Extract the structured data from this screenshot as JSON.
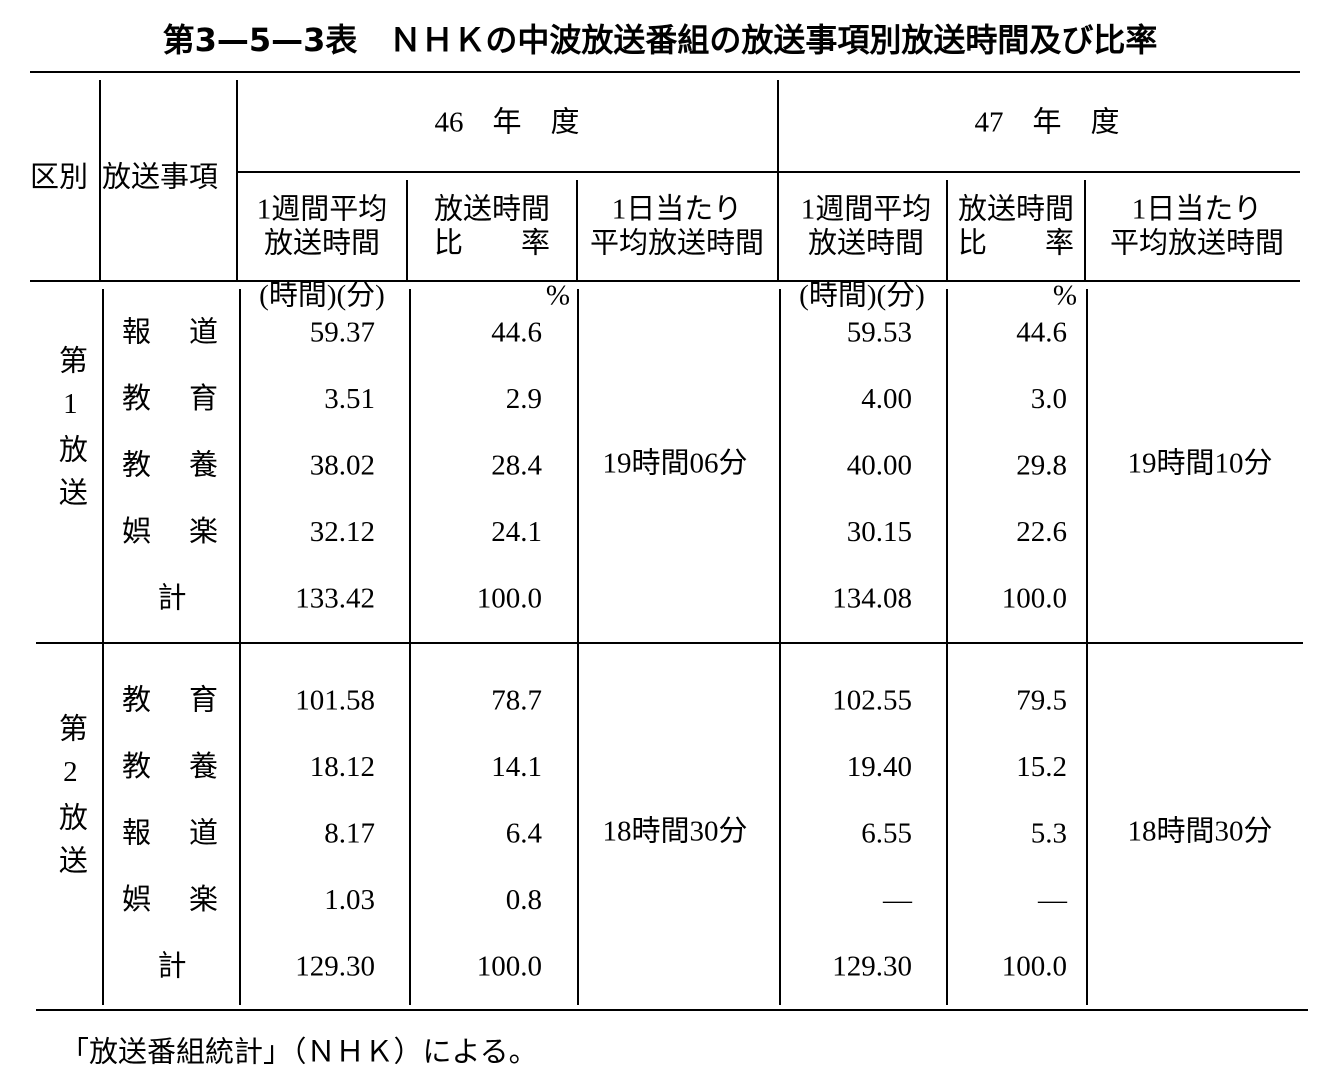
{
  "title": "第3—5—3表　ＮＨＫの中波放送番組の放送事項別放送時間及び比率",
  "header": {
    "division": "区別",
    "item": "放送事項",
    "years": [
      {
        "label": "46　年　度",
        "columns": [
          [
            "1週間平均",
            "放送時間"
          ],
          [
            "放送時間",
            "比　　率"
          ],
          [
            "1日当たり",
            "平均放送時間"
          ]
        ],
        "units": [
          "(時間)(分)",
          "%"
        ]
      },
      {
        "label": "47　年　度",
        "columns": [
          [
            "1週間平均",
            "放送時間"
          ],
          [
            "放送時間",
            "比　　率"
          ],
          [
            "1日当たり",
            "平均放送時間"
          ]
        ],
        "units": [
          "(時間)(分)",
          "%"
        ]
      }
    ]
  },
  "groups": [
    {
      "label": "第1放送",
      "daily": [
        "19時間06分",
        "19時間10分"
      ],
      "rows": [
        {
          "item": "報道",
          "cells": [
            "59.37",
            "44.6",
            "59.53",
            "44.6"
          ]
        },
        {
          "item": "教育",
          "cells": [
            "3.51",
            "2.9",
            "4.00",
            "3.0"
          ]
        },
        {
          "item": "教養",
          "cells": [
            "38.02",
            "28.4",
            "40.00",
            "29.8"
          ]
        },
        {
          "item": "娯楽",
          "cells": [
            "32.12",
            "24.1",
            "30.15",
            "22.6"
          ]
        },
        {
          "item": "計",
          "cells": [
            "133.42",
            "100.0",
            "134.08",
            "100.0"
          ]
        }
      ]
    },
    {
      "label": "第2放送",
      "daily": [
        "18時間30分",
        "18時間30分"
      ],
      "rows": [
        {
          "item": "教育",
          "cells": [
            "101.58",
            "78.7",
            "102.55",
            "79.5"
          ]
        },
        {
          "item": "教養",
          "cells": [
            "18.12",
            "14.1",
            "19.40",
            "15.2"
          ]
        },
        {
          "item": "報道",
          "cells": [
            "8.17",
            "6.4",
            "6.55",
            "5.3"
          ]
        },
        {
          "item": "娯楽",
          "cells": [
            "1.03",
            "0.8",
            "—",
            "—"
          ]
        },
        {
          "item": "計",
          "cells": [
            "129.30",
            "100.0",
            "129.30",
            "100.0"
          ]
        }
      ]
    }
  ],
  "source": "「放送番組統計」（ＮＨＫ）による。"
}
